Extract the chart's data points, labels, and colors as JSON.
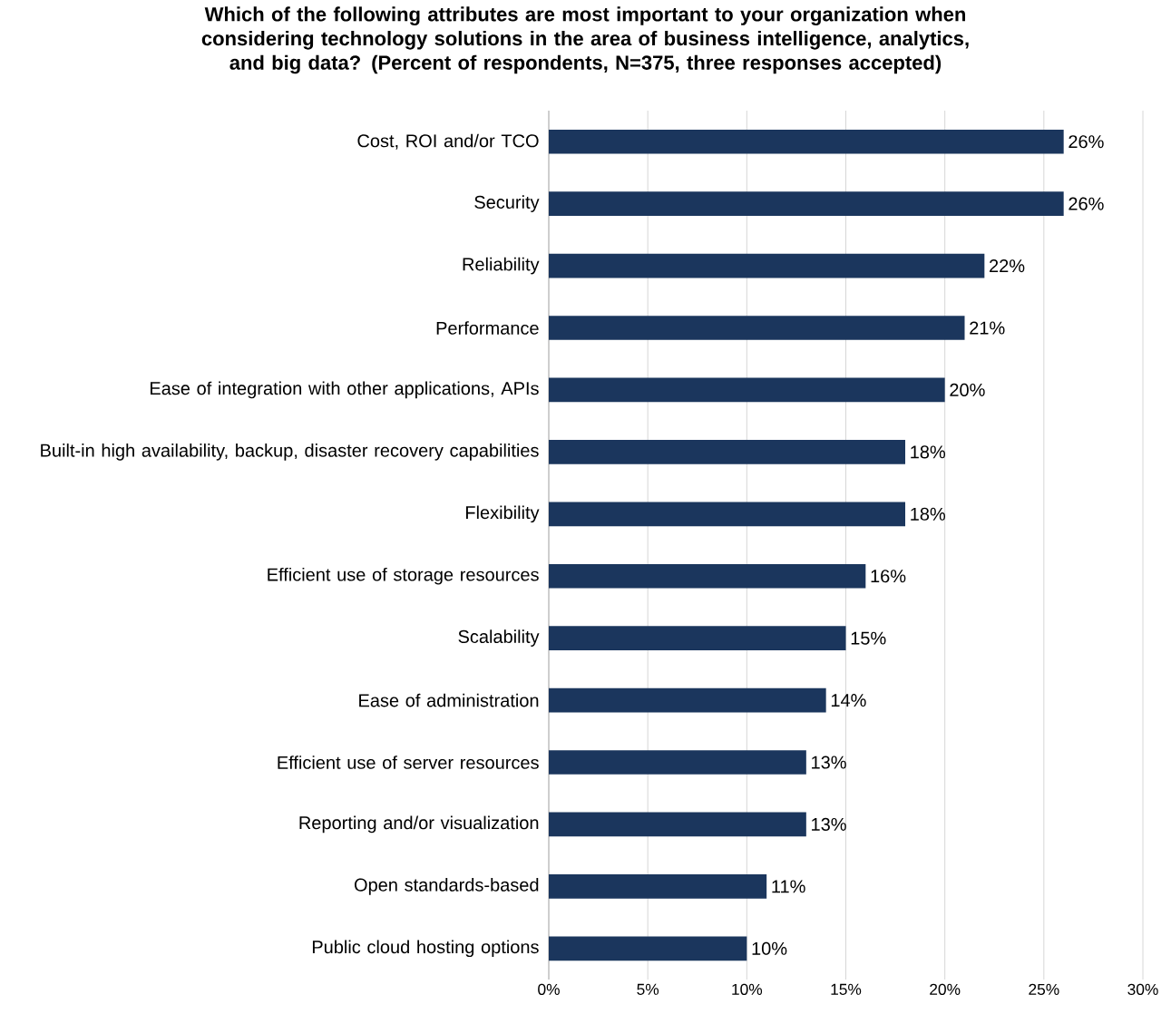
{
  "chart_data": {
    "type": "bar",
    "orientation": "horizontal",
    "title": "Which of the following attributes are most important to your organization when considering technology solutions in the area of business intelligence, analytics, and big data? (Percent of respondents, N=375, three responses accepted)",
    "categories": [
      "Cost, ROI and/or TCO",
      "Security",
      "Reliability",
      "Performance",
      "Ease of integration with other applications, APIs",
      "Built-in high availability, backup, disaster recovery capabilities",
      "Flexibility",
      "Efficient use of storage resources",
      "Scalability",
      "Ease of administration",
      "Efficient use of server resources",
      "Reporting and/or visualization",
      "Open standards-based",
      "Public cloud hosting options"
    ],
    "values": [
      26,
      26,
      22,
      21,
      20,
      18,
      18,
      16,
      15,
      14,
      13,
      13,
      11,
      10
    ],
    "value_labels": [
      "26%",
      "26%",
      "22%",
      "21%",
      "20%",
      "18%",
      "18%",
      "16%",
      "15%",
      "14%",
      "13%",
      "13%",
      "11%",
      "10%"
    ],
    "color": "#1b365d",
    "xlim": [
      0,
      30
    ],
    "xticks": [
      {
        "value": 0,
        "label": "0%"
      },
      {
        "value": 5,
        "label": "5%"
      },
      {
        "value": 10,
        "label": "10%"
      },
      {
        "value": 15,
        "label": "15%"
      },
      {
        "value": 20,
        "label": "20%"
      },
      {
        "value": 25,
        "label": "25%"
      },
      {
        "value": 30,
        "label": "30%"
      }
    ],
    "grid": "x"
  }
}
